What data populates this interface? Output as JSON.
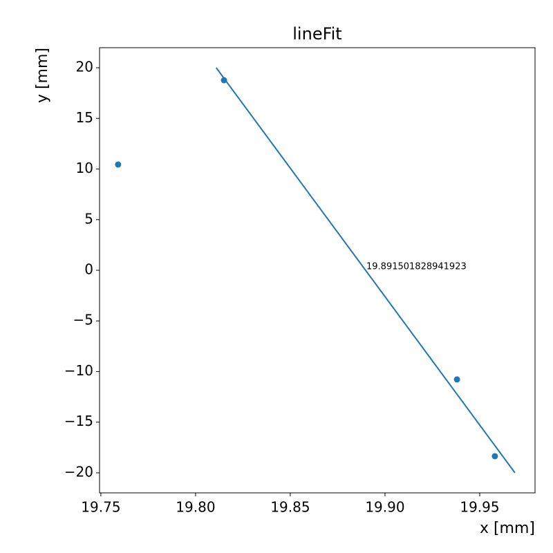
{
  "chart_data": {
    "type": "scatter",
    "title": "lineFit",
    "xlabel": "x [mm]",
    "ylabel": "y [mm]",
    "annotation": "19.891501828941923",
    "xlim": [
      19.7493,
      19.9792
    ],
    "ylim": [
      -21.98,
      21.98
    ],
    "xticks": [
      19.75,
      {
        "value": 19.8,
        "label": "19.80"
      },
      19.85,
      {
        "value": 19.9,
        "label": "19.90"
      },
      19.95
    ],
    "yticks": [
      {
        "value": -20,
        "label": "−20"
      },
      {
        "value": -15,
        "label": "−15"
      },
      {
        "value": -10,
        "label": "−10"
      },
      {
        "value": -5,
        "label": "−5"
      },
      0,
      5,
      10,
      15,
      20
    ],
    "series": [
      {
        "type": "scatter",
        "color": "#1f77b4",
        "x": [
          19.7591,
          19.815,
          19.938,
          19.958
        ],
        "values": [
          10.44,
          18.77,
          -10.78,
          -18.36
        ]
      },
      {
        "type": "line",
        "color": "#1f77b4",
        "x": [
          19.8109,
          19.9686
        ],
        "values": [
          20,
          -20
        ]
      }
    ]
  }
}
